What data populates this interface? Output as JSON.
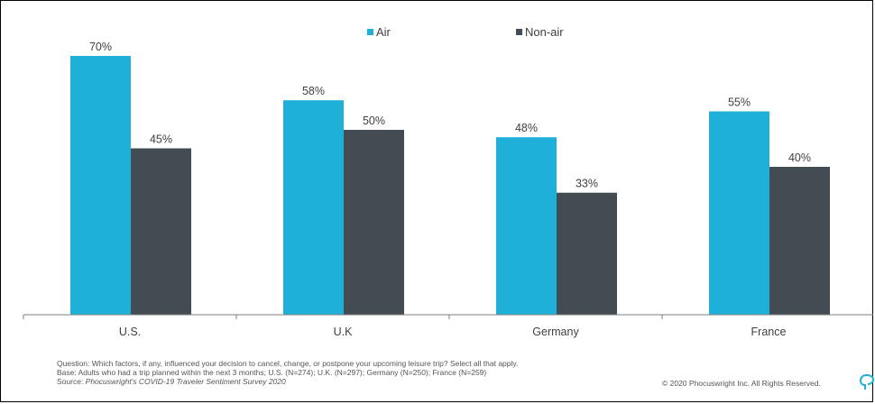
{
  "colors": {
    "air": "#1eb0d8",
    "non_air": "#434b53",
    "axis": "#7f7f7f",
    "label": "#404040"
  },
  "chart_data": {
    "type": "bar",
    "categories": [
      "U.S.",
      "U.K",
      "Germany",
      "France"
    ],
    "series": [
      {
        "name": "Air",
        "values": [
          70,
          58,
          48,
          55
        ],
        "labels": [
          "70%",
          "58%",
          "48%",
          "55%"
        ]
      },
      {
        "name": "Non-air",
        "values": [
          45,
          50,
          33,
          40
        ],
        "labels": [
          "45%",
          "50%",
          "33%",
          "40%"
        ]
      }
    ],
    "ylim": [
      0,
      100
    ],
    "grid": false,
    "legend": "top-center",
    "unit": "%"
  },
  "legend": {
    "air": "Air",
    "non_air": "Non-air"
  },
  "footnotes": {
    "question": "Question: Which factors, if any, influenced your decision to cancel, change, or postpone your upcoming leisure trip? Select all that apply.",
    "base": "Base: Adults who had a trip planned within the next 3 months; U.S. (N=274); U.K. (N=297); Germany (N=250); France (N=259)",
    "source_prefix": "Source: ",
    "source_title": "Phocuswright's COVID-19 Traveler Sentiment Survey 2020"
  },
  "copyright": "© 2020 Phocuswright Inc. All Rights Reserved.",
  "logo_icon": "phocuswright-logo-icon"
}
